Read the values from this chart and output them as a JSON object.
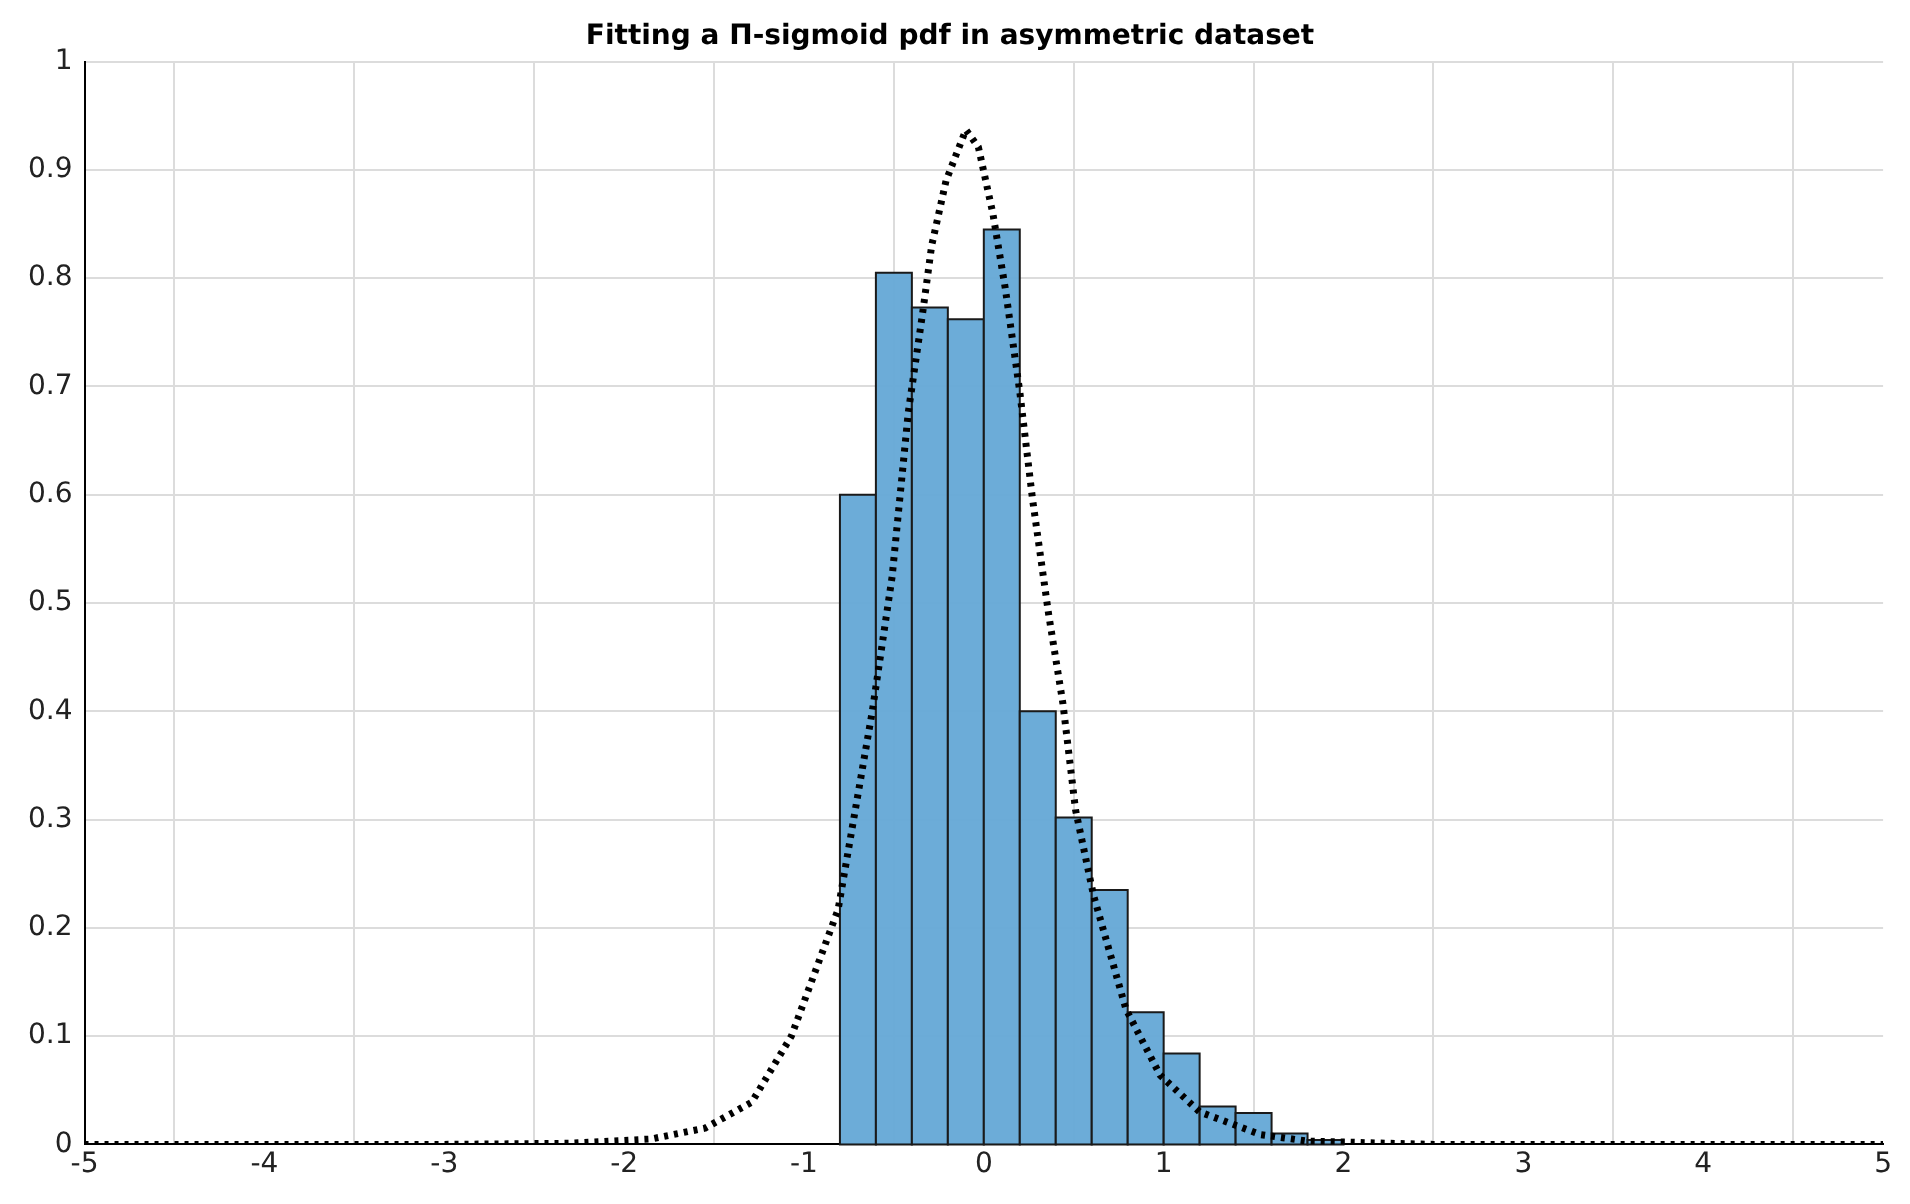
{
  "chart_data": {
    "type": "histogram",
    "title": "Fitting a Π-sigmoid pdf in asymmetric dataset",
    "bins": [
      -0.8,
      -0.6,
      -0.4,
      -0.2,
      0,
      0.2,
      0.4,
      0.6,
      0.8,
      1,
      1.2,
      1.4,
      1.6,
      1.8,
      2
    ],
    "values": [
      0.6,
      0.805,
      0.773,
      0.762,
      0.845,
      0.4,
      0.302,
      0.235,
      0.122,
      0.084,
      0.035,
      0.029,
      0.01,
      0.004
    ],
    "color": "#64a8d6",
    "series": [
      {
        "type": "line",
        "color": "#000000",
        "line_style": "dotted",
        "marker": "none",
        "x": [
          -5,
          -4,
          -3,
          -2.3,
          -1.85,
          -1.55,
          -1.29,
          -1.07,
          -0.81,
          -0.62,
          -0.51,
          -0.42,
          -0.34,
          -0.29,
          -0.21,
          -0.1,
          -0.03,
          0.05,
          0.12,
          0.2,
          0.27,
          0.36,
          0.44,
          0.51,
          0.61,
          0.79,
          0.98,
          1.2,
          1.54,
          1.8,
          2.5,
          3,
          4,
          5
        ],
        "values": [
          0,
          0,
          0,
          0.001,
          0.005,
          0.015,
          0.039,
          0.1,
          0.217,
          0.4,
          0.524,
          0.676,
          0.768,
          0.83,
          0.89,
          0.937,
          0.921,
          0.86,
          0.79,
          0.695,
          0.597,
          0.49,
          0.407,
          0.309,
          0.23,
          0.125,
          0.064,
          0.03,
          0.009,
          0.003,
          0,
          0,
          0,
          0
        ]
      }
    ],
    "xlim": [
      -5,
      5
    ],
    "xticks": [
      -5,
      -4,
      -3,
      -2,
      -1,
      0,
      1,
      2,
      3,
      4,
      5
    ],
    "ylim": [
      0,
      1
    ],
    "yticks": [
      0,
      0.1,
      0.2,
      0.3,
      0.4,
      0.5,
      0.6,
      0.7,
      0.8,
      0.9,
      1
    ],
    "grid": true,
    "legend": false
  }
}
